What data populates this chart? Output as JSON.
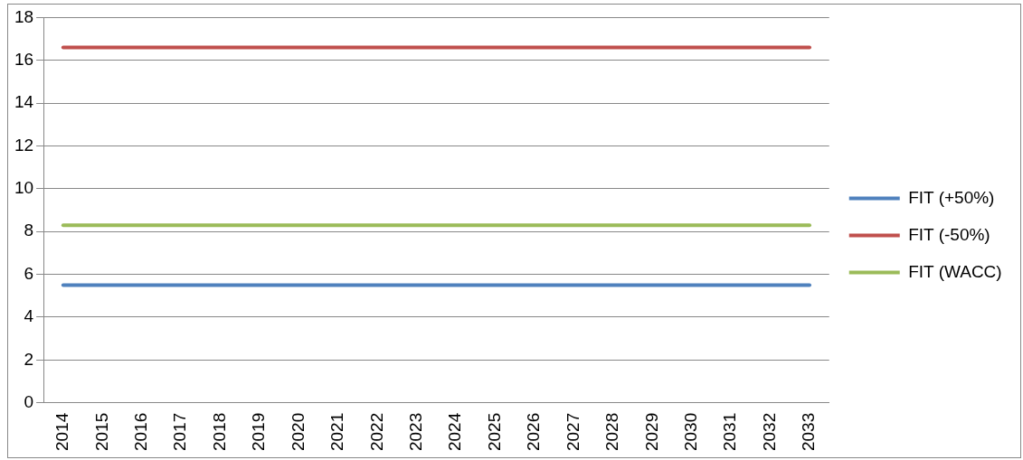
{
  "chart_data": {
    "type": "line",
    "categories": [
      "2014",
      "2015",
      "2016",
      "2017",
      "2018",
      "2019",
      "2020",
      "2021",
      "2022",
      "2023",
      "2024",
      "2025",
      "2026",
      "2027",
      "2028",
      "2029",
      "2030",
      "2031",
      "2032",
      "2033"
    ],
    "series": [
      {
        "name": "FIT (+50%)",
        "color": "#4f81bd",
        "values": [
          5.5,
          5.5,
          5.5,
          5.5,
          5.5,
          5.5,
          5.5,
          5.5,
          5.5,
          5.5,
          5.5,
          5.5,
          5.5,
          5.5,
          5.5,
          5.5,
          5.5,
          5.5,
          5.5,
          5.5
        ]
      },
      {
        "name": "FIT (-50%)",
        "color": "#c0504d",
        "values": [
          16.6,
          16.6,
          16.6,
          16.6,
          16.6,
          16.6,
          16.6,
          16.6,
          16.6,
          16.6,
          16.6,
          16.6,
          16.6,
          16.6,
          16.6,
          16.6,
          16.6,
          16.6,
          16.6,
          16.6
        ]
      },
      {
        "name": "FIT (WACC)",
        "color": "#9bbb59",
        "values": [
          8.3,
          8.3,
          8.3,
          8.3,
          8.3,
          8.3,
          8.3,
          8.3,
          8.3,
          8.3,
          8.3,
          8.3,
          8.3,
          8.3,
          8.3,
          8.3,
          8.3,
          8.3,
          8.3,
          8.3
        ]
      }
    ],
    "ylim": [
      0,
      18
    ],
    "yticks": [
      0,
      2,
      4,
      6,
      8,
      10,
      12,
      14,
      16,
      18
    ],
    "grid": "y",
    "legend": "right",
    "marker": "none",
    "line_style": "solid"
  }
}
